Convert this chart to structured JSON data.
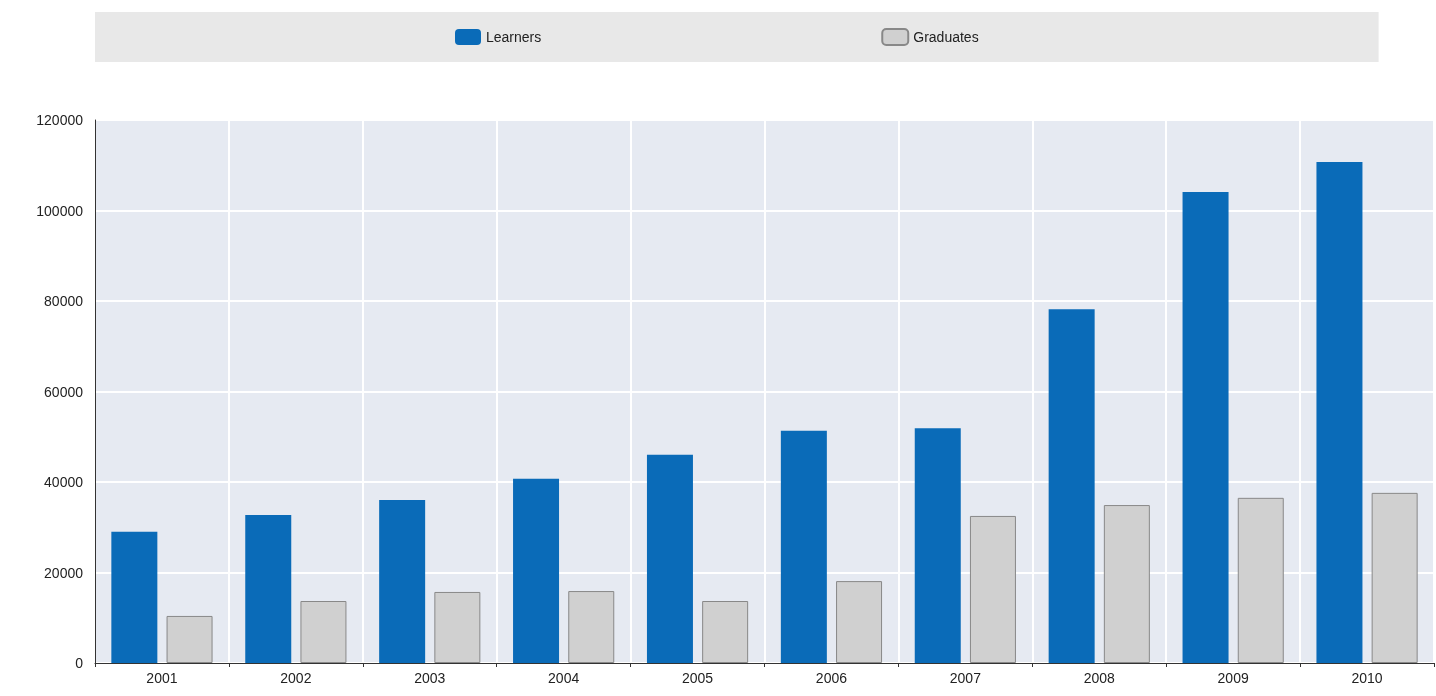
{
  "chart_data": {
    "type": "bar",
    "categories": [
      "2001",
      "2002",
      "2003",
      "2004",
      "2005",
      "2006",
      "2007",
      "2008",
      "2009",
      "2010"
    ],
    "series": [
      {
        "name": "Learners",
        "color": "#0a6bb8",
        "values": [
          29000,
          32700,
          36000,
          40700,
          46000,
          51300,
          51900,
          78200,
          104100,
          110700
        ]
      },
      {
        "name": "Graduates",
        "color": "#d0d0d0",
        "values": [
          10400,
          13700,
          15700,
          15900,
          13700,
          18100,
          32500,
          34900,
          36500,
          37600
        ]
      }
    ],
    "ylim": [
      0,
      120000
    ],
    "yticks": [
      0,
      20000,
      40000,
      60000,
      80000,
      100000,
      120000
    ],
    "grid": true,
    "legend": "top"
  }
}
